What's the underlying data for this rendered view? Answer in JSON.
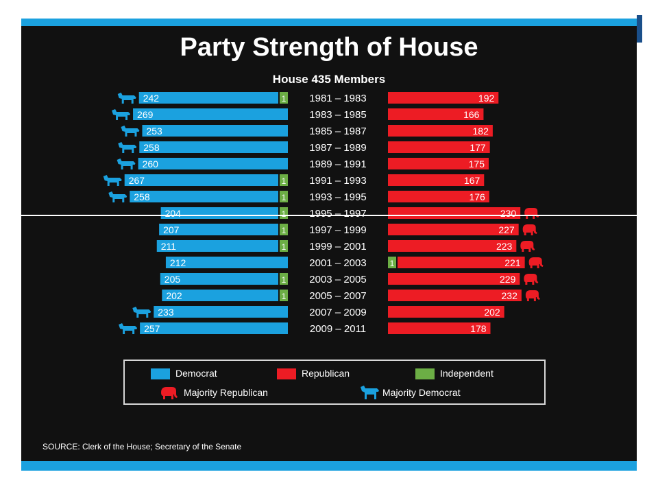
{
  "title": "Party Strength of House",
  "subtitle": "House 435 Members",
  "source": "SOURCE: Clerk of the House; Secretary of the Senate",
  "colors": {
    "democrat": "#1ba1df",
    "republican": "#ed1c24",
    "independent": "#6cae45",
    "background": "#111111"
  },
  "legend": {
    "democrat": "Democrat",
    "republican": "Republican",
    "independent": "Independent",
    "majority_republican": "Majority Republican",
    "majority_democrat": "Majority Democrat"
  },
  "chart_data": {
    "type": "bar",
    "layout": "butterfly",
    "title": "Party Strength of House",
    "subtitle": "House 435 Members",
    "categories": [
      "1981 – 1983",
      "1983 – 1985",
      "1985 – 1987",
      "1987 – 1989",
      "1989 – 1991",
      "1991 – 1993",
      "1993 – 1995",
      "1995 – 1997",
      "1997 – 1999",
      "1999 – 2001",
      "2001 – 2003",
      "2003 – 2005",
      "2005 – 2007",
      "2007 – 2009",
      "2009 – 2011"
    ],
    "series": [
      {
        "name": "Democrat",
        "values": [
          242,
          269,
          253,
          258,
          260,
          267,
          258,
          204,
          207,
          211,
          212,
          205,
          202,
          233,
          257
        ]
      },
      {
        "name": "Republican",
        "values": [
          192,
          166,
          182,
          177,
          175,
          167,
          176,
          230,
          227,
          223,
          221,
          229,
          232,
          202,
          178
        ]
      },
      {
        "name": "Independent",
        "values": [
          1,
          0,
          0,
          0,
          0,
          1,
          1,
          1,
          1,
          1,
          1,
          1,
          1,
          0,
          0
        ]
      }
    ],
    "majority": [
      "D",
      "D",
      "D",
      "D",
      "D",
      "D",
      "D",
      "R",
      "R",
      "R",
      "R",
      "R",
      "R",
      "D",
      "D"
    ],
    "independent_side": [
      "D",
      "D",
      "D",
      "D",
      "D",
      "D",
      "D",
      "D",
      "D",
      "D",
      "R",
      "D",
      "D",
      "D",
      "D"
    ],
    "legend_entries": [
      "Democrat",
      "Republican",
      "Independent",
      "Majority Republican",
      "Majority Democrat"
    ]
  }
}
